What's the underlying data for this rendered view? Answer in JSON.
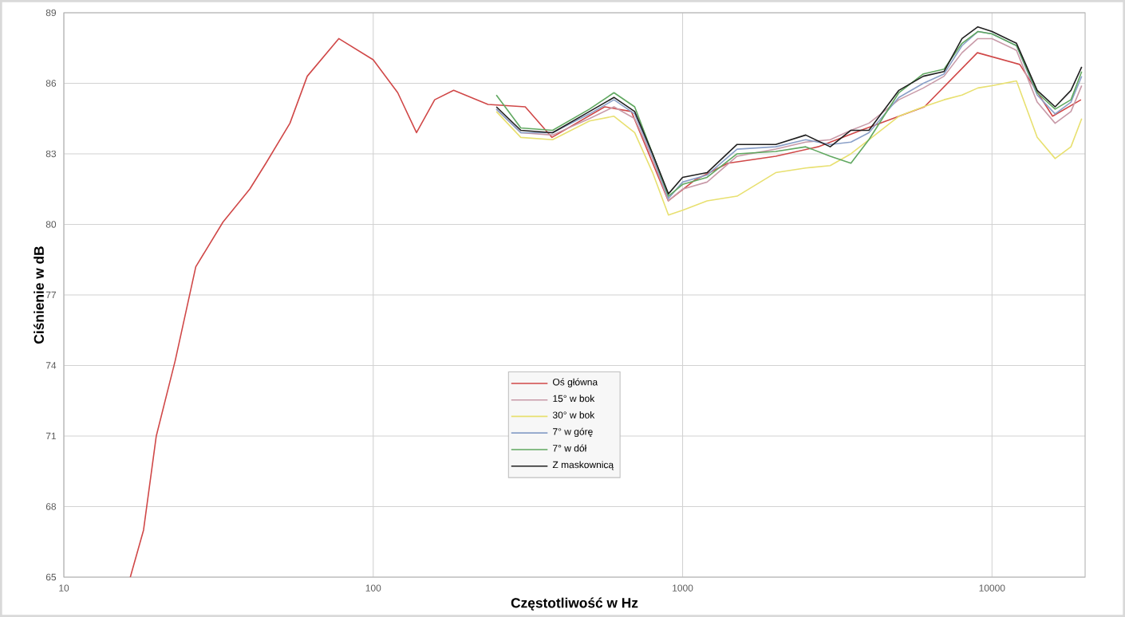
{
  "chart_data": {
    "type": "line",
    "xlabel": "Częstotliwość w Hz",
    "ylabel": "Ciśnienie w dB",
    "log": "x",
    "grid": true,
    "legend": "center",
    "marker": "none",
    "line_style": "solid",
    "xlim": [
      10,
      20000
    ],
    "xticks": [
      10,
      100,
      1000,
      10000
    ],
    "ylim": [
      65,
      89
    ],
    "yticks": [
      65,
      68,
      71,
      74,
      77,
      80,
      83,
      86,
      89
    ],
    "series": [
      {
        "name": "Oś główna",
        "color": "#d04848",
        "x": [
          16.4,
          18.1,
          19.9,
          22.9,
          26.7,
          32.7,
          39.9,
          45,
          53.8,
          61.2,
          77.4,
          100,
          120,
          138,
          158,
          182,
          235,
          310,
          378,
          560,
          683,
          899,
          1100,
          1400,
          2000,
          2740,
          3770,
          6050,
          8970,
          12300,
          15700,
          19400
        ],
        "values": [
          65,
          67.0,
          71.0,
          74.2,
          78.2,
          80.1,
          81.5,
          82.6,
          84.3,
          86.3,
          87.9,
          87.0,
          85.6,
          83.9,
          85.3,
          85.7,
          85.1,
          85.0,
          83.7,
          85.0,
          84.8,
          81.0,
          81.9,
          82.6,
          82.9,
          83.3,
          84.0,
          85.0,
          87.3,
          86.8,
          84.6,
          85.3
        ]
      },
      {
        "name": "15° w bok",
        "color": "#c89aa8",
        "x": [
          250,
          300,
          380,
          500,
          600,
          700,
          800,
          900,
          1000,
          1200,
          1500,
          2000,
          2500,
          3000,
          3500,
          4000,
          5000,
          6000,
          7000,
          8000,
          9000,
          10000,
          12000,
          14000,
          16000,
          18000,
          19500
        ],
        "values": [
          84.9,
          83.9,
          83.8,
          84.5,
          85.0,
          84.5,
          82.8,
          81.0,
          81.5,
          81.8,
          82.9,
          83.2,
          83.5,
          83.6,
          84.0,
          84.3,
          85.3,
          85.8,
          86.3,
          87.3,
          87.9,
          87.9,
          87.4,
          85.2,
          84.3,
          84.8,
          85.9
        ]
      },
      {
        "name": "30° w bok",
        "color": "#e8e070",
        "x": [
          250,
          300,
          380,
          500,
          600,
          700,
          800,
          900,
          1000,
          1200,
          1500,
          2000,
          2500,
          3000,
          3500,
          4000,
          5000,
          6000,
          7000,
          8000,
          9000,
          10000,
          12000,
          14000,
          16000,
          18000,
          19500
        ],
        "values": [
          84.8,
          83.7,
          83.6,
          84.4,
          84.6,
          83.9,
          82.2,
          80.4,
          80.6,
          81.0,
          81.2,
          82.2,
          82.4,
          82.5,
          83.0,
          83.6,
          84.6,
          85.0,
          85.3,
          85.5,
          85.8,
          85.9,
          86.1,
          83.7,
          82.8,
          83.3,
          84.5
        ]
      },
      {
        "name": "7° w górę",
        "color": "#8aa0c8",
        "x": [
          250,
          300,
          380,
          500,
          600,
          700,
          800,
          900,
          1000,
          1200,
          1500,
          2000,
          2500,
          3000,
          3500,
          4000,
          5000,
          6000,
          7000,
          8000,
          9000,
          10000,
          12000,
          14000,
          16000,
          18000,
          19500
        ],
        "values": [
          84.9,
          83.9,
          83.9,
          84.7,
          85.3,
          84.7,
          82.9,
          81.1,
          81.8,
          82.1,
          83.2,
          83.3,
          83.6,
          83.4,
          83.5,
          83.9,
          85.4,
          86.0,
          86.4,
          87.6,
          88.2,
          88.1,
          87.6,
          85.5,
          84.7,
          85.2,
          86.3
        ]
      },
      {
        "name": "7° w dół",
        "color": "#60a860",
        "x": [
          250,
          300,
          380,
          500,
          600,
          700,
          800,
          900,
          1000,
          1200,
          1500,
          2000,
          2500,
          3000,
          3500,
          4000,
          5000,
          6000,
          7000,
          8000,
          9000,
          10000,
          12000,
          14000,
          16000,
          18000,
          19500
        ],
        "values": [
          85.5,
          84.1,
          84.0,
          84.9,
          85.6,
          85.0,
          83.0,
          81.2,
          81.7,
          82.0,
          83.0,
          83.1,
          83.3,
          82.9,
          82.6,
          83.6,
          85.6,
          86.4,
          86.6,
          87.7,
          88.2,
          88.1,
          87.6,
          85.6,
          84.9,
          85.3,
          86.5
        ]
      },
      {
        "name": "Z maskownicą",
        "color": "#202020",
        "x": [
          250,
          300,
          380,
          500,
          600,
          700,
          800,
          900,
          1000,
          1200,
          1500,
          2000,
          2500,
          3000,
          3500,
          4000,
          5000,
          6000,
          7000,
          8000,
          9000,
          10000,
          12000,
          14000,
          16000,
          18000,
          19500
        ],
        "values": [
          85.0,
          84.0,
          83.9,
          84.8,
          85.4,
          84.8,
          83.0,
          81.3,
          82.0,
          82.2,
          83.4,
          83.4,
          83.8,
          83.3,
          84.0,
          84.0,
          85.7,
          86.3,
          86.5,
          87.9,
          88.4,
          88.2,
          87.7,
          85.7,
          85.0,
          85.7,
          86.7
        ]
      }
    ]
  }
}
